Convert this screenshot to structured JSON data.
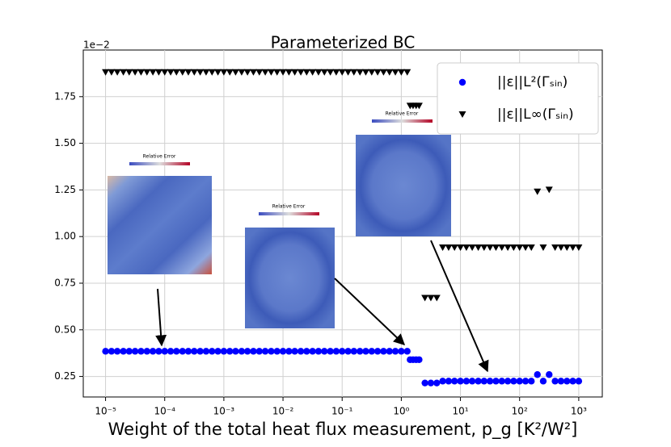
{
  "chart_data": {
    "type": "scatter",
    "title": "Parameterized BC",
    "y_offset_label": "1e−2",
    "x_label": "Weight of the total heat flux measurement, p_g [K²/W²]",
    "annotations": [
      "Relative Error",
      "Relative Error",
      "Relative Error"
    ],
    "xscale": "log",
    "grid": true,
    "legend": "upper right",
    "xlim": [
      4.2e-06,
      2500
    ],
    "ylim": [
      0.14,
      2.0
    ],
    "xticks": [
      {
        "value": 1e-05,
        "label": "10⁻⁵"
      },
      {
        "value": 0.0001,
        "label": "10⁻⁴"
      },
      {
        "value": 0.001,
        "label": "10⁻³"
      },
      {
        "value": 0.01,
        "label": "10⁻²"
      },
      {
        "value": 0.1,
        "label": "10⁻¹"
      },
      {
        "value": 1,
        "label": "10⁰"
      },
      {
        "value": 10,
        "label": "10¹"
      },
      {
        "value": 100,
        "label": "10²"
      },
      {
        "value": 1000,
        "label": "10³"
      }
    ],
    "yticks": [
      0.25,
      {
        "value": 0.5,
        "label": "0.50"
      },
      0.75,
      {
        "value": 1.0,
        "label": "1.00"
      },
      1.25,
      {
        "value": 1.5,
        "label": "1.50"
      },
      1.75
    ],
    "x": [
      1e-05,
      1.26e-05,
      1.58e-05,
      2e-05,
      2.51e-05,
      3.16e-05,
      3.98e-05,
      5.01e-05,
      6.31e-05,
      7.94e-05,
      0.0001,
      0.000126,
      0.000158,
      0.0002,
      0.000251,
      0.000316,
      0.000398,
      0.000501,
      0.000631,
      0.000794,
      0.001,
      0.00126,
      0.00158,
      0.002,
      0.00251,
      0.00316,
      0.00398,
      0.00501,
      0.00631,
      0.00794,
      0.01,
      0.0126,
      0.0158,
      0.02,
      0.0251,
      0.0316,
      0.0398,
      0.0501,
      0.0631,
      0.0794,
      0.1,
      0.126,
      0.158,
      0.2,
      0.251,
      0.316,
      0.398,
      0.501,
      0.631,
      0.794,
      1,
      1.26,
      1.41,
      1.58,
      1.78,
      2,
      2.51,
      3.16,
      3.98,
      5.01,
      6.31,
      7.94,
      10,
      12.6,
      15.8,
      20,
      25.1,
      31.6,
      39.8,
      50.1,
      63.1,
      79.4,
      100,
      126,
      158,
      200,
      251,
      316,
      398,
      501,
      631,
      794,
      1000
    ],
    "series": [
      {
        "name": "||ε||L²(Γₛᵢₙ)",
        "color": "#0000ff",
        "marker": "circle",
        "values": [
          0.385,
          0.385,
          0.385,
          0.385,
          0.385,
          0.385,
          0.385,
          0.385,
          0.385,
          0.385,
          0.385,
          0.385,
          0.385,
          0.385,
          0.385,
          0.385,
          0.385,
          0.385,
          0.385,
          0.385,
          0.385,
          0.385,
          0.385,
          0.385,
          0.385,
          0.385,
          0.385,
          0.385,
          0.385,
          0.385,
          0.385,
          0.385,
          0.385,
          0.385,
          0.385,
          0.385,
          0.385,
          0.385,
          0.385,
          0.385,
          0.385,
          0.385,
          0.385,
          0.385,
          0.385,
          0.385,
          0.385,
          0.385,
          0.385,
          0.385,
          0.385,
          0.385,
          0.34,
          0.34,
          0.34,
          0.34,
          0.215,
          0.215,
          0.215,
          0.225,
          0.225,
          0.225,
          0.225,
          0.225,
          0.225,
          0.225,
          0.225,
          0.225,
          0.225,
          0.225,
          0.225,
          0.225,
          0.225,
          0.225,
          0.225,
          0.26,
          0.225,
          0.26,
          0.225,
          0.225,
          0.225,
          0.225,
          0.225
        ]
      },
      {
        "name": "||ε||L∞(Γₛᵢₙ)",
        "color": "#000000",
        "marker": "triangle-down",
        "values": [
          1.88,
          1.88,
          1.88,
          1.88,
          1.88,
          1.88,
          1.88,
          1.88,
          1.88,
          1.88,
          1.88,
          1.88,
          1.88,
          1.88,
          1.88,
          1.88,
          1.88,
          1.88,
          1.88,
          1.88,
          1.88,
          1.88,
          1.88,
          1.88,
          1.88,
          1.88,
          1.88,
          1.88,
          1.88,
          1.88,
          1.88,
          1.88,
          1.88,
          1.88,
          1.88,
          1.88,
          1.88,
          1.88,
          1.88,
          1.88,
          1.88,
          1.88,
          1.88,
          1.88,
          1.88,
          1.88,
          1.88,
          1.88,
          1.88,
          1.88,
          1.88,
          1.88,
          1.7,
          1.7,
          1.7,
          1.7,
          0.67,
          0.67,
          0.67,
          0.94,
          0.94,
          0.94,
          0.94,
          0.94,
          0.94,
          0.94,
          0.94,
          0.94,
          0.94,
          0.94,
          0.94,
          0.94,
          0.94,
          0.94,
          0.94,
          1.24,
          0.94,
          1.25,
          0.94,
          0.94,
          0.94,
          0.94,
          0.94
        ]
      }
    ]
  }
}
